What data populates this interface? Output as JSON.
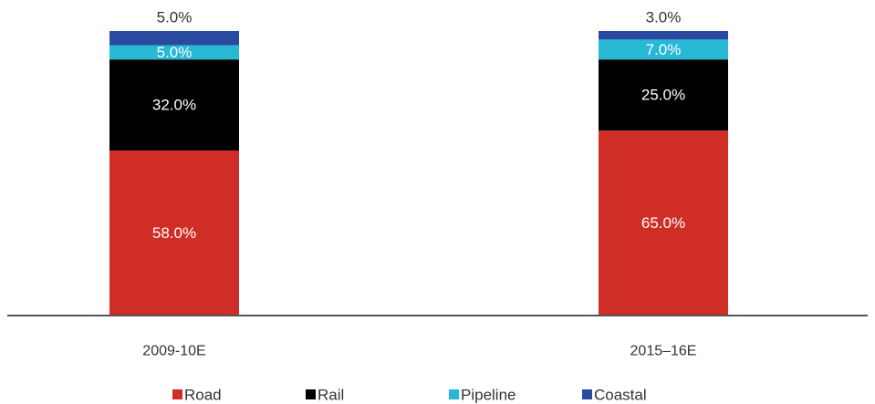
{
  "chart_data": {
    "type": "bar",
    "stacked": true,
    "categories": [
      "2009-10E",
      "2015–16E"
    ],
    "series": [
      {
        "name": "Road",
        "values": [
          58.0,
          65.0
        ],
        "labels": [
          "58.0%",
          "65.0%"
        ],
        "color": "#d12d27",
        "label_color": "#ffffff"
      },
      {
        "name": "Rail",
        "values": [
          32.0,
          25.0
        ],
        "labels": [
          "32.0%",
          "25.0%"
        ],
        "color": "#000000",
        "label_color": "#ffffff"
      },
      {
        "name": "Pipeline",
        "values": [
          5.0,
          7.0
        ],
        "labels": [
          "5.0%",
          "7.0%"
        ],
        "color": "#27b8d6",
        "label_color": "#ffffff"
      },
      {
        "name": "Coastal",
        "values": [
          5.0,
          3.0
        ],
        "labels": [
          "5.0%",
          "3.0%"
        ],
        "color": "#2a4a9f",
        "label_color": "#333333"
      }
    ],
    "ylim": [
      0,
      100
    ],
    "legend_position": "bottom",
    "grid": false
  }
}
